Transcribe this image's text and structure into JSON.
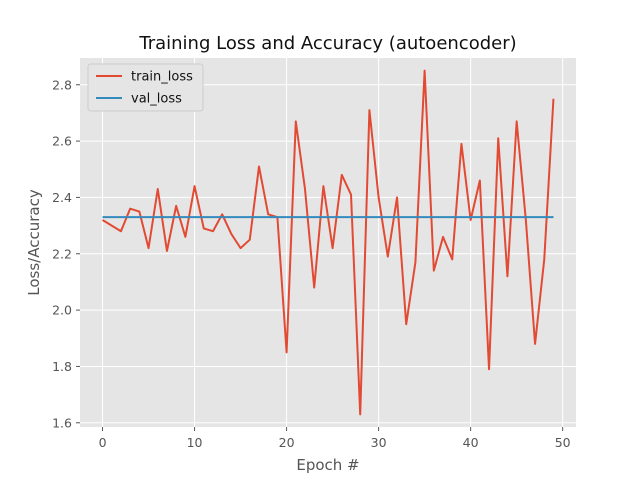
{
  "chart_data": {
    "type": "line",
    "title": "Training Loss and Accuracy (autoencoder)",
    "xlabel": "Epoch #",
    "ylabel": "Loss/Accuracy",
    "xlim": [
      -2.45,
      51.45
    ],
    "ylim": [
      1.585,
      2.895
    ],
    "xticks": [
      0,
      10,
      20,
      30,
      40,
      50
    ],
    "yticks": [
      1.6,
      1.8,
      2.0,
      2.2,
      2.4,
      2.6,
      2.8
    ],
    "grid": true,
    "legend": "top-left",
    "x": [
      0,
      1,
      2,
      3,
      4,
      5,
      6,
      7,
      8,
      9,
      10,
      11,
      12,
      13,
      14,
      15,
      16,
      17,
      18,
      19,
      20,
      21,
      22,
      23,
      24,
      25,
      26,
      27,
      28,
      29,
      30,
      31,
      32,
      33,
      34,
      35,
      36,
      37,
      38,
      39,
      40,
      41,
      42,
      43,
      44,
      45,
      46,
      47,
      48,
      49
    ],
    "series": [
      {
        "name": "train_loss",
        "color": "#E24A33",
        "values": [
          2.32,
          2.3,
          2.28,
          2.36,
          2.35,
          2.22,
          2.43,
          2.21,
          2.37,
          2.26,
          2.44,
          2.29,
          2.28,
          2.34,
          2.27,
          2.22,
          2.25,
          2.51,
          2.34,
          2.33,
          1.85,
          2.67,
          2.43,
          2.08,
          2.44,
          2.22,
          2.48,
          2.41,
          1.63,
          2.71,
          2.4,
          2.19,
          2.4,
          1.95,
          2.17,
          2.85,
          2.14,
          2.26,
          2.18,
          2.59,
          2.32,
          2.46,
          1.79,
          2.61,
          2.12,
          2.67,
          2.32,
          1.88,
          2.18,
          2.75
        ]
      },
      {
        "name": "val_loss",
        "color": "#348ABD",
        "values": [
          2.33,
          2.33,
          2.33,
          2.33,
          2.33,
          2.33,
          2.33,
          2.33,
          2.33,
          2.33,
          2.33,
          2.33,
          2.33,
          2.33,
          2.33,
          2.33,
          2.33,
          2.33,
          2.33,
          2.33,
          2.33,
          2.33,
          2.33,
          2.33,
          2.33,
          2.33,
          2.33,
          2.33,
          2.33,
          2.33,
          2.33,
          2.33,
          2.33,
          2.33,
          2.33,
          2.33,
          2.33,
          2.33,
          2.33,
          2.33,
          2.33,
          2.33,
          2.33,
          2.33,
          2.33,
          2.33,
          2.33,
          2.33,
          2.33,
          2.33
        ]
      }
    ],
    "style": {
      "plot_background": "#E5E5E5",
      "grid_color": "#FFFFFF"
    }
  }
}
